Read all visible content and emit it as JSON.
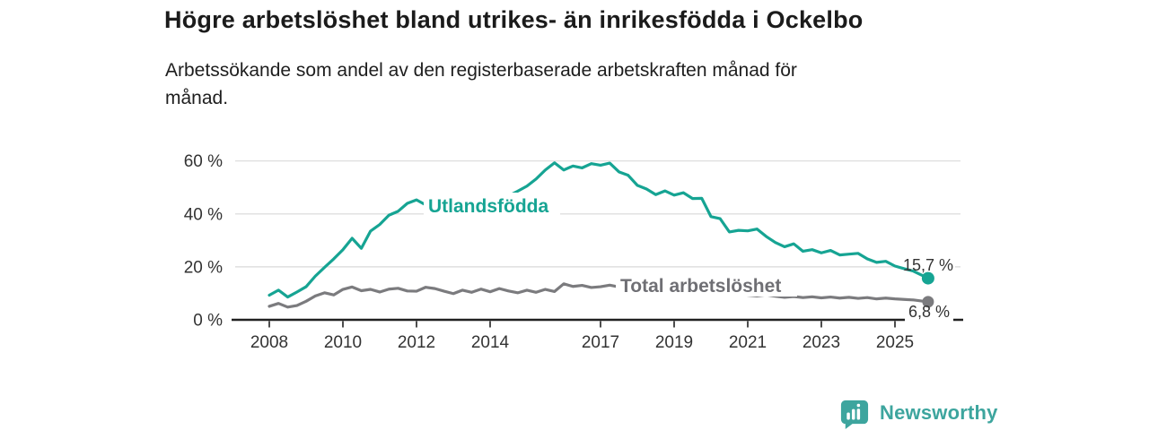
{
  "header": {
    "title": "Högre arbetslöshet bland utrikes- än inrikesfödda i Ockelbo",
    "subtitle_line1": "Arbetssökande som andel av den registerbaserade arbetskraften månad för",
    "subtitle_line2": "månad."
  },
  "chart_data": {
    "type": "line",
    "unit": "%",
    "grid": true,
    "x_start": 2008,
    "x_step": 0.25,
    "xlim": [
      2007.9,
      2026.1
    ],
    "ylim": [
      0,
      63
    ],
    "y_ticks": [
      {
        "value": 0,
        "label": "0 %"
      },
      {
        "value": 20,
        "label": "20 %"
      },
      {
        "value": 40,
        "label": "40 %"
      },
      {
        "value": 60,
        "label": "60 %"
      }
    ],
    "x_ticks": [
      {
        "value": 2008,
        "label": "2008"
      },
      {
        "value": 2010,
        "label": "2010"
      },
      {
        "value": 2012,
        "label": "2012"
      },
      {
        "value": 2014,
        "label": "2014"
      },
      {
        "value": 2017,
        "label": "2017"
      },
      {
        "value": 2019,
        "label": "2019"
      },
      {
        "value": 2021,
        "label": "2021"
      },
      {
        "value": 2023,
        "label": "2023"
      },
      {
        "value": 2025,
        "label": "2025"
      }
    ],
    "grid_color": "#d9d9d9",
    "axis_color": "#202020",
    "tick_label_color": "#333333",
    "end_label_color": "#333333",
    "series": [
      {
        "name": "Utlandsfödda",
        "color": "#16a493",
        "values": [
          9.3,
          11.2,
          8.6,
          10.5,
          12.5,
          16.5,
          19.8,
          23.0,
          26.5,
          30.8,
          27.0,
          33.5,
          36.0,
          39.5,
          41.0,
          44.0,
          45.3,
          43.4,
          44.6,
          43.2,
          43.5,
          44.2,
          43.2,
          44.6,
          44.0,
          45.5,
          46.8,
          48.6,
          50.5,
          53.2,
          56.6,
          59.3,
          56.6,
          58.1,
          57.4,
          59.0,
          58.4,
          59.2,
          55.9,
          54.6,
          50.8,
          49.4,
          47.3,
          48.7,
          47.1,
          48.0,
          45.8,
          45.9,
          39.0,
          38.2,
          33.2,
          33.8,
          33.6,
          34.3,
          31.5,
          29.2,
          27.6,
          28.7,
          25.9,
          26.5,
          25.3,
          26.2,
          24.5,
          24.8,
          25.1,
          23.0,
          21.7,
          22.1,
          20.3,
          19.3,
          18.4
        ],
        "end_point": {
          "x": 2025.9,
          "value": 15.7
        },
        "end_label": "15,7 %"
      },
      {
        "name": "Total arbetslöshet",
        "color": "#7b7b7e",
        "label_color": "#6f6f74",
        "values": [
          5.1,
          6.2,
          4.8,
          5.4,
          7.0,
          9.0,
          10.2,
          9.4,
          11.5,
          12.4,
          11.0,
          11.5,
          10.5,
          11.6,
          11.9,
          10.9,
          10.8,
          12.3,
          11.8,
          10.8,
          9.9,
          11.2,
          10.4,
          11.6,
          10.6,
          11.8,
          10.9,
          10.2,
          11.2,
          10.4,
          11.5,
          10.7,
          13.6,
          12.6,
          13.0,
          12.2,
          12.5,
          13.1,
          12.4,
          11.8,
          11.0,
          11.5,
          10.7,
          10.2,
          9.8,
          10.4,
          9.7,
          10.1,
          10.8,
          11.2,
          10.4,
          9.8,
          9.3,
          9.0,
          9.4,
          8.9,
          8.5,
          8.8,
          8.4,
          8.7,
          8.3,
          8.6,
          8.2,
          8.5,
          8.1,
          8.4,
          7.9,
          8.2,
          7.9,
          7.7,
          7.5
        ],
        "end_point": {
          "x": 2025.9,
          "value": 6.8
        },
        "end_label": "6,8 %"
      }
    ]
  },
  "footer": {
    "brand": "Newsworthy",
    "brand_color": "#3da59e"
  }
}
